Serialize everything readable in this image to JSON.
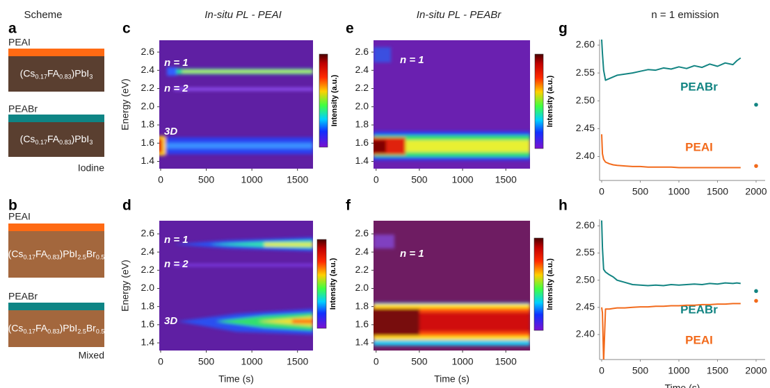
{
  "schemes": {
    "title": "Scheme",
    "panels": [
      {
        "letter": "a",
        "substrate": "Iodine",
        "layers": [
          {
            "label": "PEAI",
            "formula": [
              "(Cs",
              "0.17",
              "FA",
              "0.83",
              ")PbI",
              "3"
            ]
          },
          {
            "label": "PEABr",
            "formula": [
              "(Cs",
              "0.17",
              "FA",
              "0.83",
              ")PbI",
              "3"
            ]
          }
        ]
      },
      {
        "letter": "b",
        "substrate": "Mixed",
        "layers": [
          {
            "label": "PEAI",
            "formula": [
              "(Cs",
              "0.17",
              "FA",
              "0.83",
              ")PbI",
              "2.5",
              "Br",
              "0.5"
            ]
          },
          {
            "label": "PEABr",
            "formula": [
              "(Cs",
              "0.17",
              "FA",
              "0.83",
              ")PbI",
              "2.5",
              "Br",
              "0.5"
            ]
          }
        ]
      }
    ]
  },
  "chart_data": [
    {
      "type": "heatmap",
      "panel": "c",
      "title": "In-situ PL - PEAI",
      "ylabel": "Energy (eV)",
      "xlim": [
        -15,
        1670
      ],
      "xticks": [
        0,
        500,
        1000,
        1500
      ],
      "ylim": [
        1.32,
        2.73
      ],
      "yticks": [
        1.4,
        1.6,
        1.8,
        {
          "value": 2,
          "label": "2.0"
        },
        2.2,
        2.4,
        2.6
      ],
      "colorbar_label": "Intensity (a.u.)",
      "annotations": [
        "n = 1",
        "n = 2",
        "3D"
      ]
    },
    {
      "type": "heatmap",
      "panel": "d",
      "ylabel": "Energy (eV)",
      "xlabel": "Time (s)",
      "xlim": [
        -15,
        1670
      ],
      "xticks": [
        0,
        500,
        1000,
        1500
      ],
      "ylim": [
        1.316,
        2.745
      ],
      "yticks": [
        1.4,
        1.6,
        1.8,
        {
          "value": 2,
          "label": "2.0"
        },
        2.2,
        2.4,
        2.6
      ],
      "colorbar_label": "Intensity (a.u.)",
      "annotations": [
        "n = 1",
        "n = 2",
        "3D"
      ]
    },
    {
      "type": "heatmap",
      "panel": "e",
      "title": "In-situ PL - PEABr",
      "xlim": [
        -30,
        1780
      ],
      "xticks": [
        0,
        500,
        1000,
        1500
      ],
      "ylim": [
        1.32,
        2.73
      ],
      "yticks": [
        1.4,
        1.6,
        1.8,
        {
          "value": 2,
          "label": "2.0"
        },
        2.2,
        2.4,
        2.6
      ],
      "colorbar_label": "Intensity (a.u.)",
      "annotations": [
        "n = 1"
      ]
    },
    {
      "type": "heatmap",
      "panel": "f",
      "xlabel": "Time (s)",
      "xlim": [
        -30,
        1780
      ],
      "xticks": [
        0,
        500,
        1000,
        1500
      ],
      "ylim": [
        1.316,
        2.745
      ],
      "yticks": [
        1.4,
        1.6,
        1.8,
        {
          "value": 2,
          "label": "2.0"
        },
        2.2,
        2.4,
        2.6
      ],
      "colorbar_label": "Intensity (a.u.)",
      "annotations": [
        "n = 1"
      ]
    },
    {
      "type": "line",
      "panel": "g",
      "title": "n = 1 emission",
      "xlim": [
        -27,
        2117
      ],
      "xticks": [
        0,
        500,
        1000,
        1500,
        2000
      ],
      "ylim": [
        2.357,
        2.61
      ],
      "yticks": [
        {
          "value": 2.4,
          "label": "2.40"
        },
        2.45,
        {
          "value": 2.5,
          "label": "2.50"
        },
        2.55,
        {
          "value": 2.6,
          "label": "2.60"
        }
      ],
      "x": [
        0,
        10,
        25,
        50,
        100,
        150,
        200,
        300,
        400,
        500,
        600,
        700,
        800,
        900,
        1000,
        1100,
        1200,
        1300,
        1400,
        1500,
        1600,
        1700,
        1750,
        1800
      ],
      "series": [
        {
          "name": "PEABr",
          "color": "#128482",
          "values": [
            2.61,
            2.585,
            2.555,
            2.537,
            2.54,
            2.543,
            2.546,
            2.548,
            2.55,
            2.553,
            2.556,
            2.555,
            2.559,
            2.557,
            2.561,
            2.558,
            2.563,
            2.56,
            2.566,
            2.562,
            2.568,
            2.565,
            2.572,
            2.577
          ],
          "end_point": {
            "x": 2000,
            "value": 2.493
          }
        },
        {
          "name": "PEAI",
          "color": "#f26a1b",
          "values": [
            2.44,
            2.405,
            2.395,
            2.39,
            2.387,
            2.385,
            2.384,
            2.383,
            2.382,
            2.382,
            2.381,
            2.381,
            2.381,
            2.381,
            2.38,
            2.38,
            2.38,
            2.38,
            2.38,
            2.38,
            2.38,
            2.38,
            2.38,
            2.38
          ],
          "end_point": {
            "x": 2000,
            "value": 2.383
          }
        }
      ]
    },
    {
      "type": "line",
      "panel": "h",
      "xlabel": "Time (s)",
      "xlim": [
        -27,
        2117
      ],
      "xticks": [
        0,
        500,
        1000,
        1500,
        2000
      ],
      "ylim": [
        2.354,
        2.612
      ],
      "yticks": [
        {
          "value": 2.4,
          "label": "2.40"
        },
        2.45,
        {
          "value": 2.5,
          "label": "2.50"
        },
        2.55,
        {
          "value": 2.6,
          "label": "2.60"
        }
      ],
      "x": [
        0,
        10,
        25,
        50,
        100,
        150,
        200,
        300,
        400,
        500,
        600,
        700,
        800,
        900,
        1000,
        1100,
        1200,
        1300,
        1400,
        1500,
        1600,
        1700,
        1750,
        1800
      ],
      "series": [
        {
          "name": "PEABr",
          "color": "#128482",
          "values": [
            2.61,
            2.56,
            2.52,
            2.515,
            2.51,
            2.506,
            2.5,
            2.496,
            2.492,
            2.491,
            2.49,
            2.491,
            2.49,
            2.492,
            2.491,
            2.492,
            2.493,
            2.492,
            2.494,
            2.493,
            2.495,
            2.494,
            2.495,
            2.494
          ],
          "end_point": {
            "x": 2000,
            "value": 2.48
          }
        },
        {
          "name": "PEAI",
          "color": "#f26a1b",
          "values": [
            2.45,
            2.44,
            2.35,
            2.447,
            2.447,
            2.448,
            2.449,
            2.449,
            2.45,
            2.451,
            2.451,
            2.452,
            2.452,
            2.453,
            2.453,
            2.454,
            2.454,
            2.455,
            2.455,
            2.456,
            2.456,
            2.457,
            2.457,
            2.457
          ],
          "end_point": {
            "x": 2000,
            "value": 2.462
          }
        }
      ]
    }
  ]
}
